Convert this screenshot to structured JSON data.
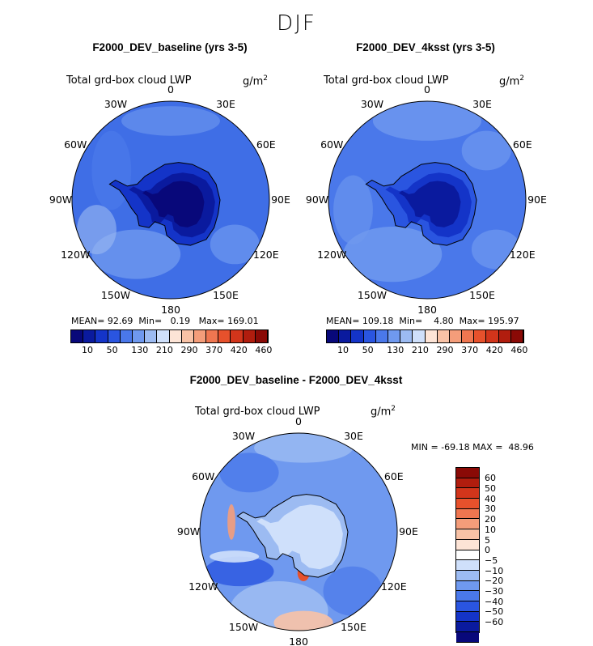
{
  "figure": {
    "season": "DJF"
  },
  "panels": [
    {
      "title": "F2000_DEV_baseline (yrs 3-5)",
      "variable": "Total grd-box cloud LWP",
      "units": "g/m",
      "units_exp": "2",
      "stats": {
        "mean_label": "MEAN=",
        "mean": "92.69",
        "min_label": "Min=",
        "min": "0.19",
        "max_label": "Max=",
        "max": "169.01"
      }
    },
    {
      "title": "F2000_DEV_4ksst (yrs 3-5)",
      "variable": "Total grd-box cloud LWP",
      "units": "g/m",
      "units_exp": "2",
      "stats": {
        "mean_label": "MEAN=",
        "mean": "109.18",
        "min_label": "Min=",
        "min": "4.80",
        "max_label": "Max=",
        "max": "195.97"
      }
    },
    {
      "title": "F2000_DEV_baseline - F2000_DEV_4ksst",
      "variable": "Total grd-box cloud LWP",
      "units": "g/m",
      "units_exp": "2",
      "stats": {
        "min_label": "MIN =",
        "min": "-69.18",
        "max_label": "MAX =",
        "max": "48.96"
      }
    }
  ],
  "lon_labels": [
    "0",
    "30E",
    "60E",
    "90E",
    "120E",
    "150E",
    "180",
    "150W",
    "120W",
    "90W",
    "60W",
    "30W"
  ],
  "chart_data": [
    {
      "type": "heatmap",
      "projection": "south-polar-stereographic",
      "title": "F2000_DEV_baseline (yrs 3-5)",
      "variable": "Total grd-box cloud LWP",
      "units": "g/m2",
      "mean": 92.69,
      "min": 0.19,
      "max": 169.01,
      "colorbar_levels": [
        10,
        50,
        130,
        210,
        290,
        370,
        420,
        460
      ],
      "colorbar_tick_labels": [
        "10",
        "50",
        "130",
        "210",
        "290",
        "370",
        "420",
        "460"
      ]
    },
    {
      "type": "heatmap",
      "projection": "south-polar-stereographic",
      "title": "F2000_DEV_4ksst (yrs 3-5)",
      "variable": "Total grd-box cloud LWP",
      "units": "g/m2",
      "mean": 109.18,
      "min": 4.8,
      "max": 195.97,
      "colorbar_levels": [
        10,
        50,
        130,
        210,
        290,
        370,
        420,
        460
      ],
      "colorbar_tick_labels": [
        "10",
        "50",
        "130",
        "210",
        "290",
        "370",
        "420",
        "460"
      ]
    },
    {
      "type": "heatmap",
      "projection": "south-polar-stereographic",
      "title": "F2000_DEV_baseline - F2000_DEV_4ksst",
      "variable": "Total grd-box cloud LWP",
      "units": "g/m2",
      "min": -69.18,
      "max": 48.96,
      "colorbar_levels": [
        60,
        50,
        40,
        30,
        20,
        10,
        5,
        0,
        -5,
        -10,
        -20,
        -30,
        -40,
        -50,
        -60
      ],
      "colorbar_tick_labels": [
        "60",
        "50",
        "40",
        "30",
        "20",
        "10",
        "5",
        "0",
        "−5",
        "−10",
        "−20",
        "−30",
        "−40",
        "−50",
        "−60"
      ]
    }
  ],
  "colors": {
    "hcbar": [
      "#08087a",
      "#0a1a9e",
      "#1434c8",
      "#2a55e0",
      "#4a78ea",
      "#6f99ef",
      "#9cbbf2",
      "#cfe0fb",
      "#fde4d6",
      "#f8c2a6",
      "#f49d7a",
      "#ef7650",
      "#e7512c",
      "#d2351b",
      "#b11d0e",
      "#8a0a06"
    ],
    "vcbar": [
      "#8a0a06",
      "#b11d0e",
      "#d2351b",
      "#e7512c",
      "#ef7650",
      "#f49d7a",
      "#f8c2a6",
      "#fde4d6",
      "#ffffff",
      "#cfe0fb",
      "#9cbbf2",
      "#6f99ef",
      "#4a78ea",
      "#2a55e0",
      "#1434c8",
      "#0a1a9e",
      "#08087a"
    ]
  }
}
